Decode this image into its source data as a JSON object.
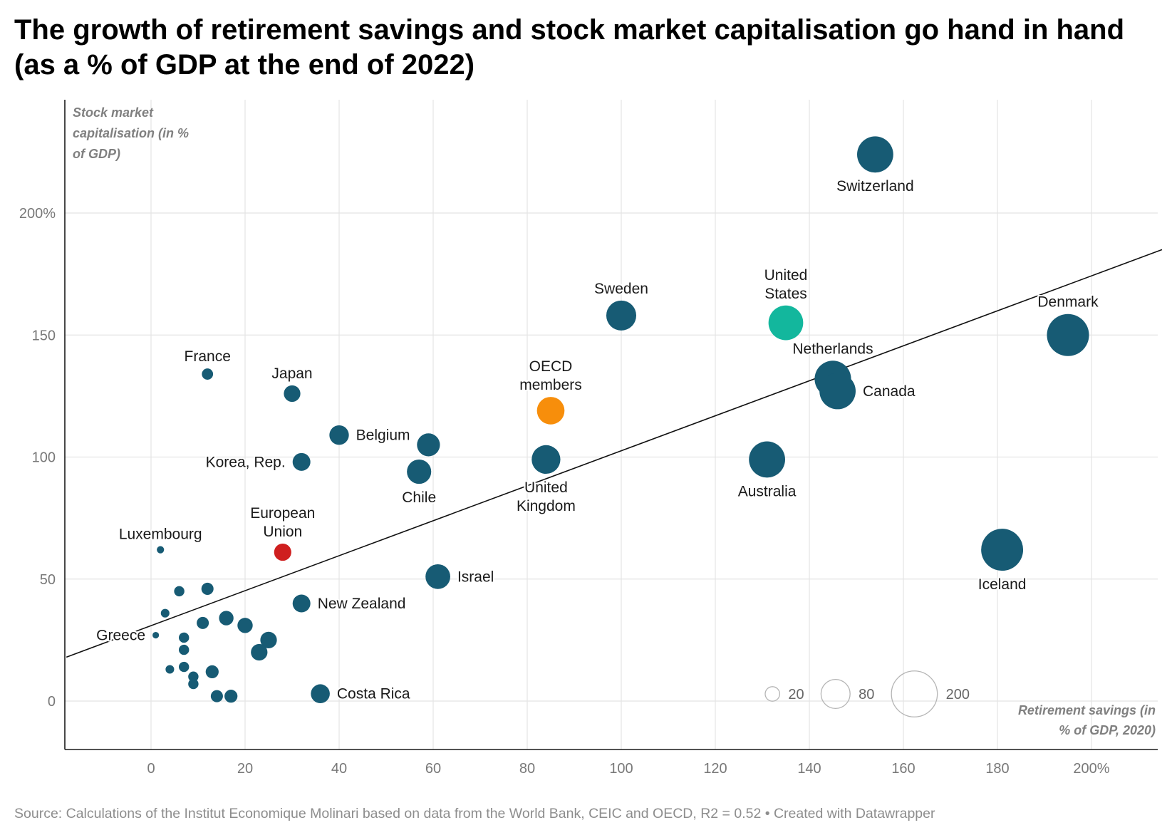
{
  "title": "The growth of retirement savings and stock market capitalisation go hand in hand (as a % of GDP at the end of 2022)",
  "source": "Source: Calculations of the Institut Economique Molinari based on data from the World Bank, CEIC and OECD, R2 = 0.52 • Created with Datawrapper",
  "chart_data": {
    "type": "scatter",
    "xlabel": "Retirement savings (in % of GDP, 2020)",
    "ylabel": "Stock market capitalisation (in % of GDP)",
    "xlim": [
      -18,
      215
    ],
    "ylim": [
      -20,
      245
    ],
    "x_ticks": [
      {
        "value": 0,
        "label": "0"
      },
      {
        "value": 20,
        "label": "20"
      },
      {
        "value": 40,
        "label": "40"
      },
      {
        "value": 60,
        "label": "60"
      },
      {
        "value": 80,
        "label": "80"
      },
      {
        "value": 100,
        "label": "100"
      },
      {
        "value": 120,
        "label": "120"
      },
      {
        "value": 140,
        "label": "140"
      },
      {
        "value": 160,
        "label": "160"
      },
      {
        "value": 180,
        "label": "180"
      },
      {
        "value": 200,
        "label": "200%"
      }
    ],
    "y_ticks": [
      {
        "value": 0,
        "label": "0"
      },
      {
        "value": 50,
        "label": "50"
      },
      {
        "value": 100,
        "label": "100"
      },
      {
        "value": 150,
        "label": "150"
      },
      {
        "value": 200,
        "label": "200%"
      }
    ],
    "grid": true,
    "colors": {
      "default": "#175b74",
      "oecd": "#f78e0b",
      "eu": "#cf1f1f",
      "us": "#13b79d",
      "trend": "#111111"
    },
    "trendline": {
      "x": [
        -18,
        215
      ],
      "y": [
        18,
        185
      ]
    },
    "size_legend": {
      "placement": "bottom-right",
      "entries": [
        {
          "value": 20,
          "label": "20"
        },
        {
          "value": 80,
          "label": "80"
        },
        {
          "value": 200,
          "label": "200"
        }
      ]
    },
    "points": [
      {
        "label": "Switzerland",
        "x": 154,
        "y": 224,
        "size": 124,
        "color": "default",
        "label_pos": "below"
      },
      {
        "label": "Sweden",
        "x": 100,
        "y": 158,
        "size": 85,
        "color": "default",
        "label_pos": "above"
      },
      {
        "label": "United\nStates",
        "x": 135,
        "y": 155,
        "size": 114,
        "color": "us",
        "label_pos": "above"
      },
      {
        "label": "Denmark",
        "x": 195,
        "y": 150,
        "size": 168,
        "color": "default",
        "label_pos": "above"
      },
      {
        "label": "Netherlands",
        "x": 145,
        "y": 132,
        "size": 126,
        "color": "default",
        "label_pos": "above"
      },
      {
        "label": "Canada",
        "x": 146,
        "y": 127,
        "size": 124,
        "color": "default",
        "label_pos": "right"
      },
      {
        "label": "France",
        "x": 12,
        "y": 134,
        "size": 12,
        "color": "default",
        "label_pos": "above"
      },
      {
        "label": "Japan",
        "x": 30,
        "y": 126,
        "size": 26,
        "color": "default",
        "label_pos": "above"
      },
      {
        "label": "OECD\nmembers",
        "x": 85,
        "y": 119,
        "size": 72,
        "color": "oecd",
        "label_pos": "above"
      },
      {
        "label": "Belgium",
        "x": 40,
        "y": 109,
        "size": 36,
        "color": "default",
        "label_pos": "right"
      },
      {
        "label": "",
        "x": 59,
        "y": 105,
        "size": 50,
        "color": "default"
      },
      {
        "label": "Korea, Rep.",
        "x": 32,
        "y": 98,
        "size": 30,
        "color": "default",
        "label_pos": "left"
      },
      {
        "label": "Chile",
        "x": 57,
        "y": 94,
        "size": 56,
        "color": "default",
        "label_pos": "below"
      },
      {
        "label": "United\nKingdom",
        "x": 84,
        "y": 99,
        "size": 78,
        "color": "default",
        "label_pos": "below"
      },
      {
        "label": "Australia",
        "x": 131,
        "y": 99,
        "size": 124,
        "color": "default",
        "label_pos": "below"
      },
      {
        "label": "Iceland",
        "x": 181,
        "y": 62,
        "size": 167,
        "color": "default",
        "label_pos": "below"
      },
      {
        "label": "Luxembourg",
        "x": 2,
        "y": 62,
        "size": 5,
        "color": "default",
        "label_pos": "above"
      },
      {
        "label": "European\nUnion",
        "x": 28,
        "y": 61,
        "size": 28,
        "color": "eu",
        "label_pos": "above"
      },
      {
        "label": "Israel",
        "x": 61,
        "y": 51,
        "size": 58,
        "color": "default",
        "label_pos": "right"
      },
      {
        "label": "New Zealand",
        "x": 32,
        "y": 40,
        "size": 30,
        "color": "default",
        "label_pos": "right"
      },
      {
        "label": "Greece",
        "x": 1,
        "y": 27,
        "size": 4,
        "color": "default",
        "label_pos": "left"
      },
      {
        "label": "Costa Rica",
        "x": 36,
        "y": 3,
        "size": 34,
        "color": "default",
        "label_pos": "right"
      },
      {
        "label": "",
        "x": 12,
        "y": 46,
        "size": 14,
        "color": "default"
      },
      {
        "label": "",
        "x": 6,
        "y": 45,
        "size": 10,
        "color": "default"
      },
      {
        "label": "",
        "x": 3,
        "y": 36,
        "size": 7,
        "color": "default"
      },
      {
        "label": "",
        "x": 16,
        "y": 34,
        "size": 20,
        "color": "default"
      },
      {
        "label": "",
        "x": 11,
        "y": 32,
        "size": 14,
        "color": "default"
      },
      {
        "label": "",
        "x": 20,
        "y": 31,
        "size": 22,
        "color": "default"
      },
      {
        "label": "",
        "x": 25,
        "y": 25,
        "size": 26,
        "color": "default"
      },
      {
        "label": "",
        "x": 7,
        "y": 26,
        "size": 10,
        "color": "default"
      },
      {
        "label": "",
        "x": 7,
        "y": 21,
        "size": 10,
        "color": "default"
      },
      {
        "label": "",
        "x": 23,
        "y": 20,
        "size": 26,
        "color": "default"
      },
      {
        "label": "",
        "x": 4,
        "y": 13,
        "size": 7,
        "color": "default"
      },
      {
        "label": "",
        "x": 7,
        "y": 14,
        "size": 10,
        "color": "default"
      },
      {
        "label": "",
        "x": 13,
        "y": 12,
        "size": 16,
        "color": "default"
      },
      {
        "label": "",
        "x": 9,
        "y": 10,
        "size": 10,
        "color": "default"
      },
      {
        "label": "",
        "x": 9,
        "y": 7,
        "size": 10,
        "color": "default"
      },
      {
        "label": "",
        "x": 14,
        "y": 2,
        "size": 14,
        "color": "default"
      },
      {
        "label": "",
        "x": 17,
        "y": 2,
        "size": 16,
        "color": "default"
      }
    ]
  }
}
